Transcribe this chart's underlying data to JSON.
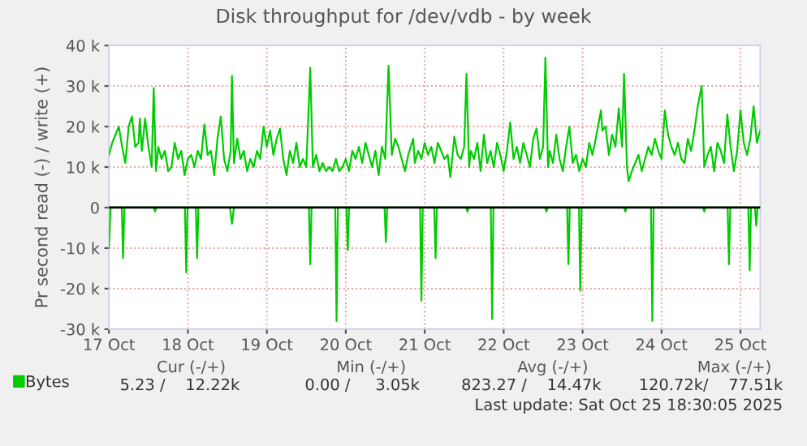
{
  "chart_data": {
    "type": "line",
    "title": "Disk throughput for /dev/vdb - by week",
    "ylabel": "Pr second read (-) / write (+)",
    "xlim": [
      "2025-10-17T00:00",
      "2025-10-25T06:00"
    ],
    "xticks": [
      {
        "value": "2025-10-17",
        "label": "17 Oct"
      },
      {
        "value": "2025-10-18",
        "label": "18 Oct"
      },
      {
        "value": "2025-10-19",
        "label": "19 Oct"
      },
      {
        "value": "2025-10-20",
        "label": "20 Oct"
      },
      {
        "value": "2025-10-21",
        "label": "21 Oct"
      },
      {
        "value": "2025-10-22",
        "label": "22 Oct"
      },
      {
        "value": "2025-10-23",
        "label": "23 Oct"
      },
      {
        "value": "2025-10-24",
        "label": "24 Oct"
      },
      {
        "value": "2025-10-25",
        "label": "25 Oct"
      }
    ],
    "ylim": [
      -30000,
      40000
    ],
    "yticks": [
      {
        "value": -30000,
        "label": "-30 k"
      },
      {
        "value": -20000,
        "label": "-20 k"
      },
      {
        "value": -10000,
        "label": "-10 k"
      },
      0,
      {
        "value": 10000,
        "label": "10 k"
      },
      {
        "value": 20000,
        "label": "20 k"
      },
      {
        "value": 30000,
        "label": "30 k"
      },
      {
        "value": 40000,
        "label": "40 k"
      }
    ],
    "grid": true,
    "legend": "bottom left",
    "ref_lines": [
      {
        "axis": "y",
        "value": 0,
        "color": "#000000"
      }
    ],
    "series": [
      {
        "name": "Bytes",
        "color": "#00cc00",
        "x": [
          "2025-10-17T00:00",
          "2025-10-17T01:00",
          "2025-10-17T02:00",
          "2025-10-17T03:00",
          "2025-10-17T04:00",
          "2025-10-17T05:00",
          "2025-10-17T06:00",
          "2025-10-17T07:00",
          "2025-10-17T08:00",
          "2025-10-17T09:00",
          "2025-10-17T09:24",
          "2025-10-17T10:00",
          "2025-10-17T11:00",
          "2025-10-17T12:00",
          "2025-10-17T13:00",
          "2025-10-17T13:36",
          "2025-10-17T14:18",
          "2025-10-17T15:00",
          "2025-10-17T16:00",
          "2025-10-17T17:00",
          "2025-10-17T18:00",
          "2025-10-17T19:00",
          "2025-10-17T20:00",
          "2025-10-17T21:00",
          "2025-10-17T22:00",
          "2025-10-17T23:00",
          "2025-10-18T00:00",
          "2025-10-18T01:00",
          "2025-10-18T02:00",
          "2025-10-18T03:00",
          "2025-10-18T04:00",
          "2025-10-18T05:00",
          "2025-10-18T06:00",
          "2025-10-18T07:00",
          "2025-10-18T08:00",
          "2025-10-18T09:00",
          "2025-10-18T10:00",
          "2025-10-18T11:00",
          "2025-10-18T12:00",
          "2025-10-18T13:00",
          "2025-10-18T13:24",
          "2025-10-18T14:00",
          "2025-10-18T15:00",
          "2025-10-18T16:00",
          "2025-10-18T17:00",
          "2025-10-18T18:00",
          "2025-10-18T19:00",
          "2025-10-18T20:00",
          "2025-10-18T21:00",
          "2025-10-18T22:00",
          "2025-10-18T23:00",
          "2025-10-19T00:00",
          "2025-10-19T01:00",
          "2025-10-19T02:00",
          "2025-10-19T03:00",
          "2025-10-19T04:00",
          "2025-10-19T05:00",
          "2025-10-19T06:00",
          "2025-10-19T07:00",
          "2025-10-19T08:00",
          "2025-10-19T09:00",
          "2025-10-19T10:00",
          "2025-10-19T11:00",
          "2025-10-19T12:00",
          "2025-10-19T13:12",
          "2025-10-19T14:00",
          "2025-10-19T15:00",
          "2025-10-19T16:00",
          "2025-10-19T17:00",
          "2025-10-19T18:00",
          "2025-10-19T19:00",
          "2025-10-19T20:00",
          "2025-10-19T21:00",
          "2025-10-19T22:00",
          "2025-10-19T23:00",
          "2025-10-20T00:00",
          "2025-10-20T01:00",
          "2025-10-20T02:00",
          "2025-10-20T03:00",
          "2025-10-20T04:00",
          "2025-10-20T05:00",
          "2025-10-20T06:00",
          "2025-10-20T07:00",
          "2025-10-20T08:00",
          "2025-10-20T09:00",
          "2025-10-20T10:00",
          "2025-10-20T11:00",
          "2025-10-20T12:00",
          "2025-10-20T13:00",
          "2025-10-20T14:00",
          "2025-10-20T15:00",
          "2025-10-20T16:00",
          "2025-10-20T17:00",
          "2025-10-20T18:00",
          "2025-10-20T19:00",
          "2025-10-20T20:30",
          "2025-10-20T21:00",
          "2025-10-20T22:00",
          "2025-10-20T23:00",
          "2025-10-21T00:00",
          "2025-10-21T01:00",
          "2025-10-21T02:00",
          "2025-10-21T03:00",
          "2025-10-21T04:00",
          "2025-10-21T05:00",
          "2025-10-21T06:00",
          "2025-10-21T07:00",
          "2025-10-21T07:48",
          "2025-10-21T09:00",
          "2025-10-21T10:00",
          "2025-10-21T11:00",
          "2025-10-21T12:00",
          "2025-10-21T12:42",
          "2025-10-21T13:30",
          "2025-10-21T14:00",
          "2025-10-21T15:00",
          "2025-10-21T16:00",
          "2025-10-21T17:00",
          "2025-10-21T18:00",
          "2025-10-21T19:00",
          "2025-10-21T20:00",
          "2025-10-21T21:00",
          "2025-10-21T22:00",
          "2025-10-21T23:00",
          "2025-10-22T00:00",
          "2025-10-22T01:00",
          "2025-10-22T02:00",
          "2025-10-22T03:00",
          "2025-10-22T04:00",
          "2025-10-22T05:00",
          "2025-10-22T06:00",
          "2025-10-22T07:00",
          "2025-10-22T08:00",
          "2025-10-22T09:00",
          "2025-10-22T10:00",
          "2025-10-22T11:00",
          "2025-10-22T12:00",
          "2025-10-22T12:42",
          "2025-10-22T13:30",
          "2025-10-22T14:00",
          "2025-10-22T15:00",
          "2025-10-22T16:00",
          "2025-10-22T17:00",
          "2025-10-22T18:00",
          "2025-10-22T19:00",
          "2025-10-22T20:00",
          "2025-10-22T21:00",
          "2025-10-22T22:00",
          "2025-10-22T23:00",
          "2025-10-23T00:00",
          "2025-10-23T01:00",
          "2025-10-23T02:00",
          "2025-10-23T03:00",
          "2025-10-23T04:00",
          "2025-10-23T05:36",
          "2025-10-23T06:00",
          "2025-10-23T07:00",
          "2025-10-23T08:00",
          "2025-10-23T09:00",
          "2025-10-23T10:00",
          "2025-10-23T11:00",
          "2025-10-23T12:00",
          "2025-10-23T12:36",
          "2025-10-23T13:30",
          "2025-10-23T14:00",
          "2025-10-23T15:00",
          "2025-10-23T16:00",
          "2025-10-23T17:00",
          "2025-10-23T18:00",
          "2025-10-23T19:00",
          "2025-10-23T20:00",
          "2025-10-23T21:00",
          "2025-10-23T22:00",
          "2025-10-23T23:00",
          "2025-10-24T00:00",
          "2025-10-24T01:00",
          "2025-10-24T02:00",
          "2025-10-24T03:00",
          "2025-10-24T04:00",
          "2025-10-24T05:00",
          "2025-10-24T06:00",
          "2025-10-24T07:00",
          "2025-10-24T08:00",
          "2025-10-24T09:00",
          "2025-10-24T10:00",
          "2025-10-24T11:00",
          "2025-10-24T12:12",
          "2025-10-24T13:00",
          "2025-10-24T14:00",
          "2025-10-24T15:00",
          "2025-10-24T16:00",
          "2025-10-24T17:00",
          "2025-10-24T18:00",
          "2025-10-24T19:00",
          "2025-10-24T20:00",
          "2025-10-24T21:00",
          "2025-10-24T22:00",
          "2025-10-24T23:00",
          "2025-10-25T00:00",
          "2025-10-25T01:00",
          "2025-10-25T02:00",
          "2025-10-25T03:00",
          "2025-10-25T04:00",
          "2025-10-25T05:00",
          "2025-10-25T06:00"
        ],
        "values": [
          13000,
          16000,
          18000,
          20000,
          15000,
          11000,
          20000,
          22500,
          15000,
          16000,
          22000,
          14000,
          22000,
          15000,
          10000,
          29500,
          9000,
          15000,
          12000,
          14000,
          9000,
          10000,
          16000,
          12000,
          14000,
          8000,
          12000,
          13000,
          10000,
          14000,
          12000,
          20500,
          13000,
          14000,
          8000,
          17000,
          22500,
          12000,
          9000,
          14000,
          32500,
          11000,
          17000,
          12000,
          14000,
          9000,
          12000,
          10000,
          14000,
          12000,
          20000,
          15000,
          19000,
          13000,
          17000,
          19500,
          12000,
          8000,
          14000,
          11000,
          16000,
          10000,
          12000,
          10000,
          34500,
          10000,
          13000,
          9000,
          11000,
          9000,
          10000,
          9000,
          12000,
          9000,
          10000,
          12000,
          9000,
          14000,
          12000,
          15000,
          11000,
          16000,
          13000,
          10000,
          14000,
          8000,
          15000,
          12000,
          35000,
          13000,
          17000,
          15000,
          12000,
          9000,
          13000,
          17000,
          11000,
          14000,
          12000,
          16000,
          13000,
          15000,
          11000,
          16000,
          14000,
          12000,
          13000,
          7500,
          17500,
          13000,
          12000,
          15000,
          33000,
          10000,
          14000,
          12000,
          16000,
          9000,
          18000,
          11000,
          14000,
          10000,
          16000,
          13000,
          9000,
          14000,
          21000,
          12000,
          15000,
          11000,
          16000,
          13000,
          10000,
          17000,
          19500,
          12000,
          15000,
          37000,
          10000,
          14000,
          11000,
          18000,
          12000,
          9000,
          15000,
          20000,
          11000,
          13000,
          9000,
          12000,
          10000,
          16000,
          13000,
          17000,
          24000,
          19000,
          20000,
          13000,
          18000,
          15000,
          24500,
          15000,
          33000,
          10000,
          6500,
          9000,
          11000,
          13000,
          9000,
          12000,
          15000,
          13000,
          17000,
          14000,
          12000,
          24000,
          18000,
          15000,
          13000,
          16000,
          12000,
          11000,
          17000,
          14000,
          19000,
          25000,
          30000,
          10000,
          13000,
          15000,
          9000,
          16000,
          14000,
          11000,
          23000,
          15000,
          9000,
          14000,
          24000,
          16000,
          13000,
          17000,
          25000,
          16000,
          19000
        ]
      },
      {
        "color": "#00cc00",
        "x": [
          "2025-10-17T00:00",
          "2025-10-17T00:30",
          "2025-10-17T03:54",
          "2025-10-17T04:18",
          "2025-10-17T04:42",
          "2025-10-17T13:36",
          "2025-10-17T14:00",
          "2025-10-17T14:24",
          "2025-10-17T23:06",
          "2025-10-17T23:30",
          "2025-10-17T23:54",
          "2025-10-18T02:24",
          "2025-10-18T02:48",
          "2025-10-18T03:12",
          "2025-10-18T12:48",
          "2025-10-18T13:24",
          "2025-10-18T14:00",
          "2025-10-19T12:48",
          "2025-10-19T13:12",
          "2025-10-19T13:36",
          "2025-10-19T20:48",
          "2025-10-19T21:12",
          "2025-10-19T21:36",
          "2025-10-20T00:12",
          "2025-10-20T00:36",
          "2025-10-20T01:00",
          "2025-10-20T11:48",
          "2025-10-20T12:12",
          "2025-10-20T12:36",
          "2025-10-20T22:36",
          "2025-10-20T23:00",
          "2025-10-20T23:24",
          "2025-10-21T02:54",
          "2025-10-21T03:18",
          "2025-10-21T03:42",
          "2025-10-21T12:36",
          "2025-10-21T13:00",
          "2025-10-21T13:24",
          "2025-10-21T20:06",
          "2025-10-21T20:30",
          "2025-10-21T20:54",
          "2025-10-22T12:36",
          "2025-10-22T13:00",
          "2025-10-22T13:24",
          "2025-10-22T19:18",
          "2025-10-22T19:42",
          "2025-10-22T20:06",
          "2025-10-22T22:54",
          "2025-10-22T23:18",
          "2025-10-22T23:42",
          "2025-10-23T12:36",
          "2025-10-23T13:00",
          "2025-10-23T13:24",
          "2025-10-23T20:48",
          "2025-10-23T21:12",
          "2025-10-23T21:36",
          "2025-10-24T12:36",
          "2025-10-24T13:00",
          "2025-10-24T13:24",
          "2025-10-24T20:06",
          "2025-10-24T20:30",
          "2025-10-24T20:54",
          "2025-10-25T02:24",
          "2025-10-25T02:48",
          "2025-10-25T03:12",
          "2025-10-25T04:24",
          "2025-10-25T04:48",
          "2025-10-25T05:12",
          "2025-10-25T06:00"
        ],
        "values": [
          -10000,
          0,
          0,
          -12500,
          0,
          0,
          -1000,
          0,
          0,
          -16000,
          0,
          0,
          -12500,
          0,
          0,
          -4000,
          0,
          0,
          -14000,
          0,
          0,
          -28000,
          0,
          0,
          -10500,
          0,
          0,
          -8500,
          0,
          0,
          -23000,
          0,
          0,
          -12500,
          0,
          0,
          -1000,
          0,
          0,
          -27500,
          0,
          0,
          -1000,
          0,
          0,
          -14000,
          0,
          0,
          -20500,
          0,
          0,
          -1000,
          0,
          0,
          -28000,
          0,
          0,
          -1000,
          0,
          0,
          -14000,
          0,
          0,
          -15500,
          0,
          0,
          -4500,
          0,
          0
        ]
      }
    ],
    "annotations": [
      "Cur (-/+)",
      "Min (-/+)",
      "Avg (-/+)",
      "Max (-/+)",
      "5.23 /    12.22k",
      "0.00 /     3.05k",
      "823.27 /    14.47k",
      "120.72k/    77.51k",
      "Last update: Sat Oct 25 18:30:05 2025"
    ]
  }
}
